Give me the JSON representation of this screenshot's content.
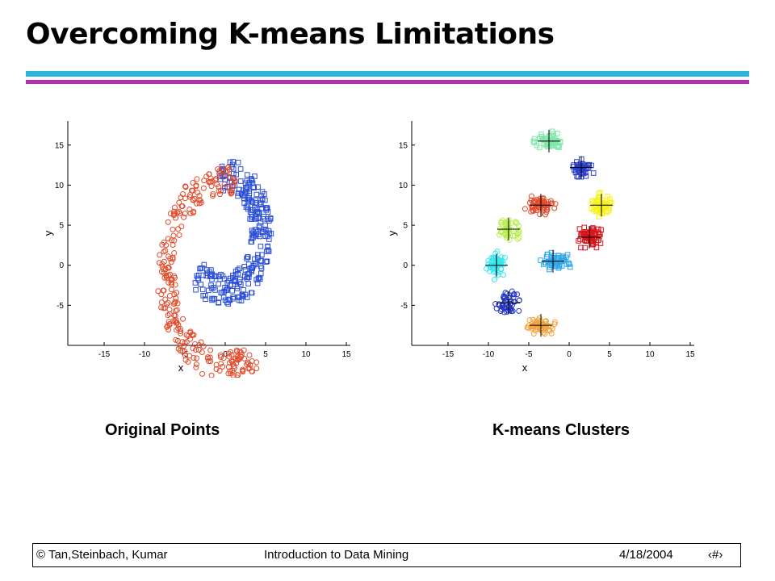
{
  "slide": {
    "title": "Overcoming K-means Limitations",
    "rule_colors": [
      "#2ab5d9",
      "#b12fb3"
    ],
    "footer": {
      "copyright": "© Tan,Steinbach, Kumar",
      "course": "Introduction to Data Mining",
      "date": "4/18/2004",
      "page": "‹#›"
    }
  },
  "chart_data": [
    {
      "type": "scatter",
      "caption": "Original Points",
      "xlabel": "x",
      "ylabel": "y",
      "xlim": [
        -19.5,
        15.5
      ],
      "ylim": [
        -10,
        18
      ],
      "xticks": [
        -15,
        -10,
        -5,
        0,
        5,
        10,
        15
      ],
      "yticks": [
        -5,
        0,
        5,
        10,
        15
      ],
      "grid": false,
      "series": [
        {
          "color": "#2b4fd6",
          "marker": "square",
          "count": 280,
          "shape": {
            "kind": "arc",
            "cx": 0,
            "cy": 4,
            "r": 4.5,
            "w": 2.5,
            "a0": -140,
            "a1": 100
          }
        },
        {
          "color": "#e14a2a",
          "marker": "circle",
          "count": 280,
          "shape": {
            "kind": "arc",
            "cx": 0,
            "cy": -1,
            "r": 7.3,
            "w": 2.3,
            "a0": 80,
            "a1": 300
          }
        }
      ]
    },
    {
      "type": "scatter",
      "caption": "K-means Clusters",
      "xlabel": "x",
      "ylabel": "y",
      "xlim": [
        -19.5,
        15.5
      ],
      "ylim": [
        -10,
        18
      ],
      "xticks": [
        -15,
        -10,
        -5,
        0,
        5,
        10,
        15
      ],
      "yticks": [
        -5,
        0,
        5,
        10,
        15
      ],
      "grid": false,
      "series": [
        {
          "color": "#7ee8a8",
          "marker": "square",
          "count": 55,
          "centroid": [
            -2.5,
            15.5
          ],
          "spread": [
            2.1,
            1.5
          ]
        },
        {
          "color": "#2b3fc8",
          "marker": "square",
          "count": 50,
          "centroid": [
            1.5,
            12.2
          ],
          "spread": [
            1.8,
            1.6
          ]
        },
        {
          "color": "#f7f21a",
          "marker": "square",
          "count": 55,
          "centroid": [
            4,
            7.5
          ],
          "spread": [
            1.8,
            2.0
          ]
        },
        {
          "color": "#d8131a",
          "marker": "square",
          "count": 60,
          "centroid": [
            2.5,
            3.5
          ],
          "spread": [
            2.2,
            1.9
          ]
        },
        {
          "color": "#2ea6e8",
          "marker": "square",
          "count": 55,
          "centroid": [
            -2,
            0.5
          ],
          "spread": [
            2.5,
            1.6
          ]
        },
        {
          "color": "#e14a2a",
          "marker": "circle",
          "count": 60,
          "centroid": [
            -3.5,
            7.5
          ],
          "spread": [
            2.6,
            1.6
          ]
        },
        {
          "color": "#b6ee4e",
          "marker": "circle",
          "count": 50,
          "centroid": [
            -7.5,
            4.5
          ],
          "spread": [
            1.9,
            1.8
          ]
        },
        {
          "color": "#36e6ef",
          "marker": "circle",
          "count": 55,
          "centroid": [
            -9,
            0
          ],
          "spread": [
            1.7,
            2.0
          ]
        },
        {
          "color": "#2235c2",
          "marker": "circle",
          "count": 50,
          "centroid": [
            -7.5,
            -4.7
          ],
          "spread": [
            2.0,
            1.8
          ]
        },
        {
          "color": "#f2a13c",
          "marker": "circle",
          "count": 60,
          "centroid": [
            -3.5,
            -7.5
          ],
          "spread": [
            2.4,
            1.6
          ]
        }
      ]
    }
  ]
}
